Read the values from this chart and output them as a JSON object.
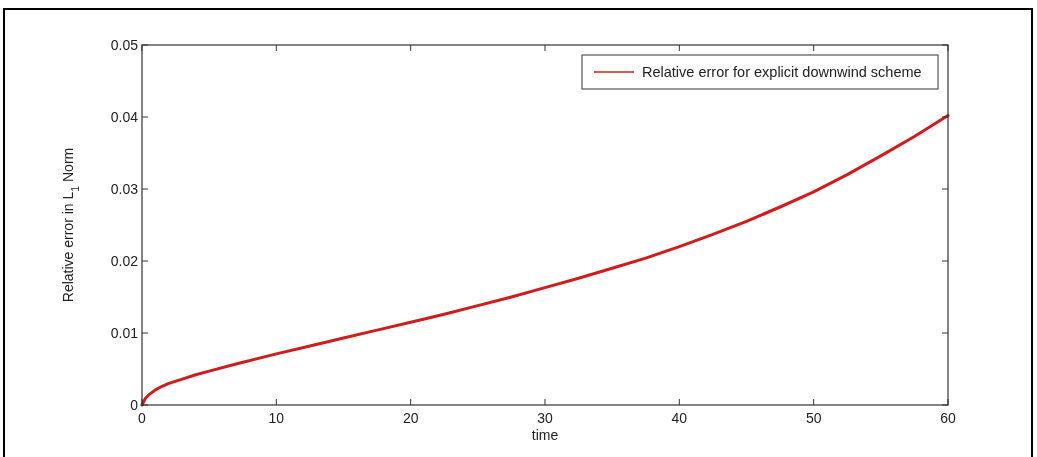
{
  "chart_data": {
    "type": "line",
    "xlabel": "time",
    "ylabel": "Relative error in L$_{1}$ Norm",
    "xlim": [
      0,
      60
    ],
    "ylim": [
      0,
      0.05
    ],
    "xticks": [
      0,
      10,
      20,
      30,
      40,
      50,
      60
    ],
    "yticks": [
      0,
      0.01,
      0.02,
      0.03,
      0.04,
      0.05
    ],
    "legend": "top right",
    "grid": false,
    "series": [
      {
        "name": "Relative error for explicit downwind scheme",
        "color": "#d01c1c",
        "x": [
          0,
          0.25,
          0.5,
          1,
          1.5,
          2,
          3,
          4,
          5,
          7,
          10,
          12.5,
          15,
          17.5,
          20,
          22.5,
          25,
          27.5,
          30,
          32.5,
          35,
          37.5,
          40,
          42.5,
          45,
          47.5,
          50,
          52.5,
          55,
          57.5,
          60
        ],
        "values": [
          0,
          0.0009,
          0.0014,
          0.0021,
          0.0026,
          0.003,
          0.0036,
          0.0042,
          0.0047,
          0.0057,
          0.0071,
          0.0082,
          0.0093,
          0.0104,
          0.0115,
          0.0126,
          0.0138,
          0.015,
          0.0163,
          0.0176,
          0.019,
          0.0204,
          0.022,
          0.0237,
          0.0255,
          0.0275,
          0.0296,
          0.032,
          0.0346,
          0.0373,
          0.0402
        ]
      }
    ]
  }
}
